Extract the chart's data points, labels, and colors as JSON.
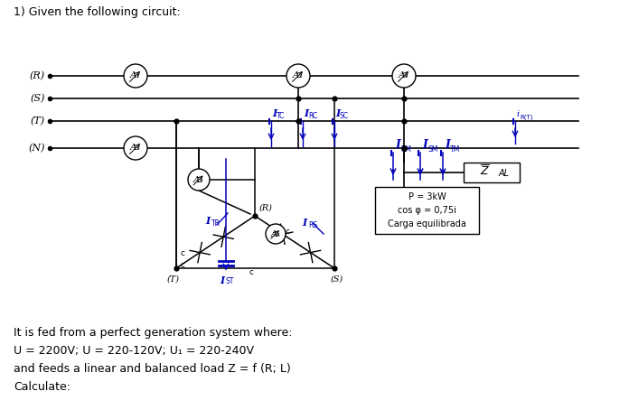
{
  "title": "1) Given the following circuit:",
  "bg_color": "#ffffff",
  "line_color": "#000000",
  "blue_color": "#0000bb",
  "bottom_texts": [
    "It is fed from a perfect generation system where:",
    "U = 2200V; U = 220-120V; U₁ = 220-240V",
    "and feeds a linear and balanced load Z = f (R; L)",
    "Calculate:"
  ],
  "load_text": [
    "P = 3kW",
    "cos φ = 0,75i",
    "Carga equilibrada"
  ]
}
